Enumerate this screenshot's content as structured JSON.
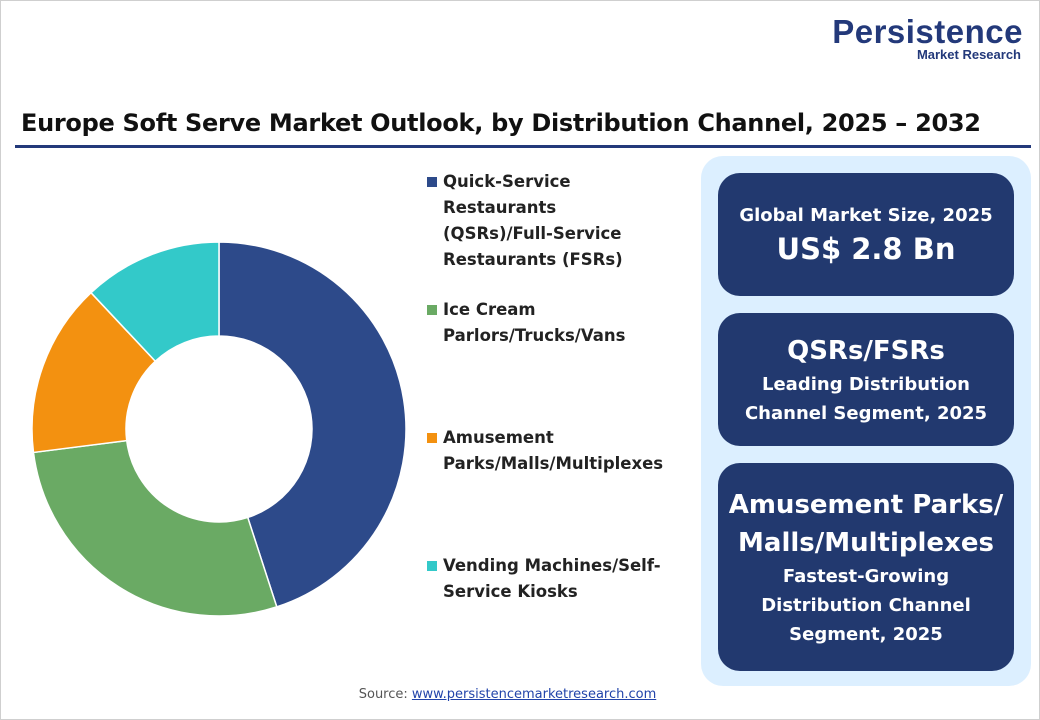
{
  "logo": {
    "name": "Persistence",
    "tagline": "Market Research"
  },
  "chart_data": {
    "type": "donut",
    "title": "Europe Soft Serve Market Outlook, by Distribution Channel, 2025 – 2032",
    "categories": [
      "Quick-Service Restaurants (QSRs)/Full-Service Restaurants (FSRs)",
      "Ice Cream Parlors/Trucks/Vans",
      "Amusement Parks/Malls/Multiplexes",
      "Vending Machines/Self-Service Kiosks"
    ],
    "values": [
      45,
      28,
      15,
      12
    ],
    "colors": [
      "#2d4a8a",
      "#6aaa64",
      "#f39110",
      "#33c9c9"
    ]
  },
  "cards": [
    {
      "heading": "Global Market Size, 2025",
      "value": "US$ 2.8 Bn"
    },
    {
      "value": "QSRs/FSRs",
      "heading": "Leading Distribution Channel Segment, 2025"
    },
    {
      "value": "Amusement Parks/Malls/Multiplexes",
      "heading": "Fastest-Growing Distribution Channel Segment, 2025"
    }
  ],
  "source": {
    "label": "Source:",
    "url": "www.persistencemarketresearch.com"
  }
}
